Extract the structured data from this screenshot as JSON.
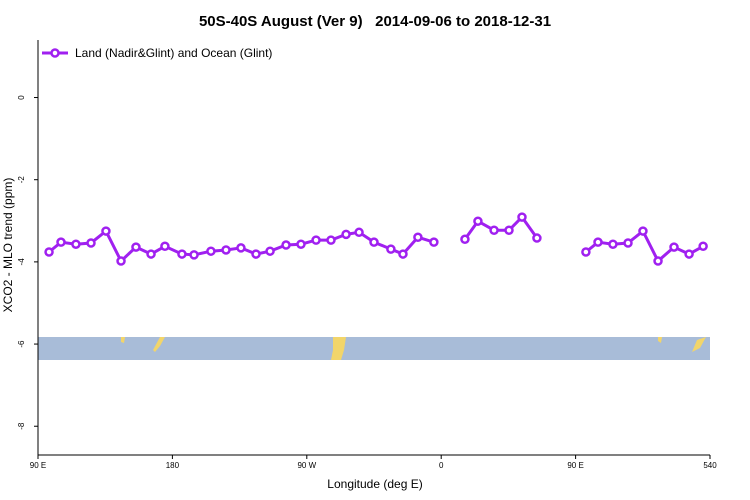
{
  "chart_data": {
    "type": "line",
    "title": "50S-40S August (Ver 9)   2014-09-06 to 2018-12-31",
    "x_label": "Longitude (deg E)",
    "y_label": "XCO2 - MLO trend (ppm)",
    "xlim": [
      90,
      540
    ],
    "ylim": [
      -8.7,
      1.4
    ],
    "xticks": [
      {
        "value": 90,
        "label": "90 E"
      },
      180,
      {
        "value": 270,
        "label": "90 W"
      },
      {
        "value": 360,
        "label": "0"
      },
      {
        "value": 450,
        "label": "90 E"
      },
      540
    ],
    "yticks": [
      0,
      -2,
      -4,
      -6,
      -8
    ],
    "legend": "top-left",
    "x": [
      97.4,
      105.4,
      115.4,
      125.5,
      135.5,
      145.6,
      155.6,
      165.7,
      175,
      186.4,
      194.5,
      205.8,
      215.9,
      225.9,
      236,
      245.4,
      256.1,
      266.1,
      276.2,
      286.2,
      296.3,
      305,
      315,
      326.3,
      334.4,
      344.4,
      355.1,
      365,
      375.9,
      384.6,
      395.4,
      405.4,
      414.1,
      424.1,
      440,
      456.9,
      465,
      475,
      485.1,
      495.1,
      505.2,
      515.9,
      526,
      535.4
    ],
    "series": [
      {
        "name": "Land (Nadir&Glint) and Ocean (Glint)",
        "color": "#a020f0",
        "values": [
          -3.76,
          -3.52,
          -3.57,
          -3.54,
          -3.25,
          -3.98,
          -3.64,
          -3.81,
          -3.62,
          -3.81,
          -3.83,
          -3.74,
          -3.71,
          -3.66,
          -3.81,
          -3.74,
          -3.59,
          -3.57,
          -3.47,
          -3.47,
          -3.33,
          -3.28,
          -3.52,
          -3.69,
          -3.81,
          -3.4,
          -3.52,
          null,
          -3.45,
          -3.01,
          -3.23,
          -3.23,
          -2.91,
          -3.42,
          null,
          -3.76,
          -3.52,
          -3.57,
          -3.54,
          -3.25,
          -3.98,
          -3.64,
          -3.81,
          -3.62
        ]
      }
    ]
  }
}
